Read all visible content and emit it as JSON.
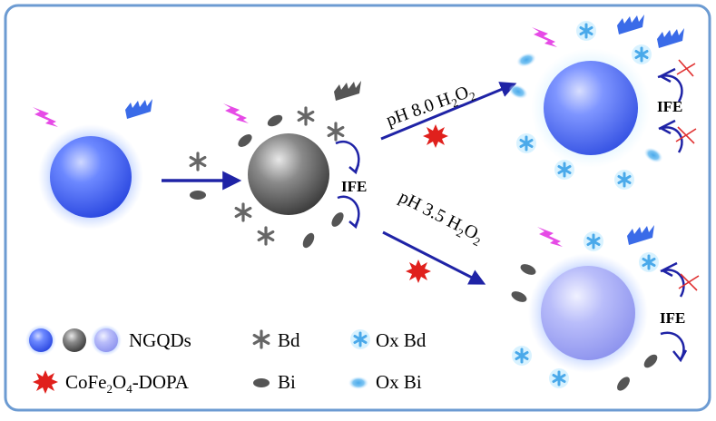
{
  "labels": {
    "ife_left": "IFE",
    "ife_top_right": "IFE",
    "ife_bottom_right": "IFE",
    "cond_top": {
      "pre": "pH 8.0 H",
      "sub1": "2",
      "mid": "O",
      "sub2": "2"
    },
    "cond_bottom": {
      "pre": "pH 3.5 H",
      "sub1": "2",
      "mid": "O",
      "sub2": "2"
    }
  },
  "legend": {
    "ngqds": "NGQDs",
    "bd": "Bd",
    "ox_bd": "Ox Bd",
    "cofe": {
      "pre": "CoFe",
      "s1": "2",
      "mid": "O",
      "s2": "4",
      "post": "-DOPA"
    },
    "bi": "Bi",
    "ox_bi": "Ox Bi"
  },
  "colors": {
    "frame": "#6c9bd2",
    "arrow": "#1f23a6",
    "ngqd_blue": "#3b5ff0",
    "ngqd_light": "#9aa3f5",
    "gray_sphere": "#555555",
    "pink_bolt": "#e64be6",
    "blue_wave": "#3a6be8",
    "gray_wave": "#555555",
    "red_cross": "#e03030",
    "cofe_star": "#e0201c",
    "ox_marker": "#5ab6ee"
  }
}
